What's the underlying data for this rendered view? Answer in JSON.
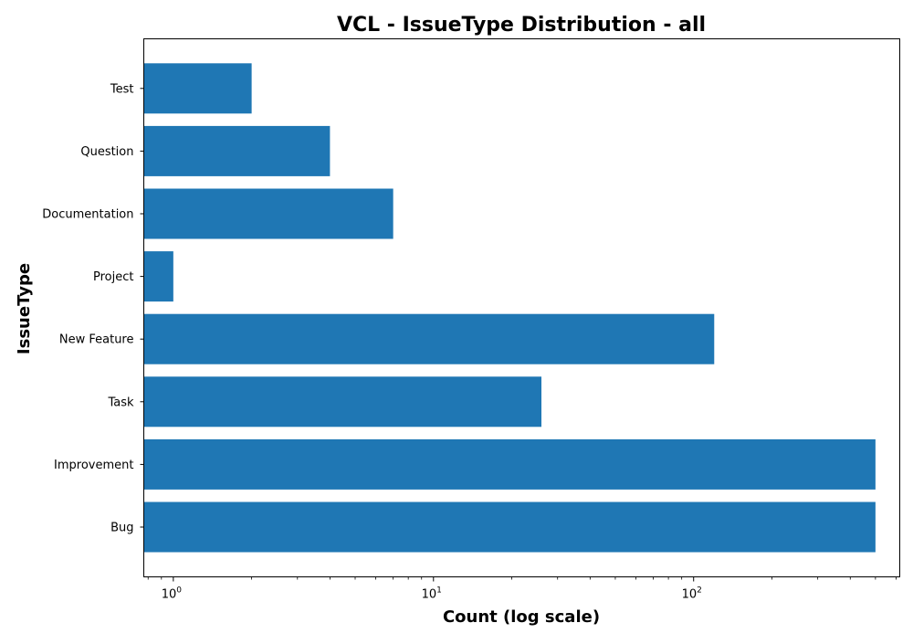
{
  "chart_data": {
    "type": "bar",
    "orientation": "horizontal",
    "title": "VCL - IssueType Distribution - all",
    "xlabel": "Count (log scale)",
    "ylabel": "IssueType",
    "x_scale": "log",
    "xlim": [
      0.77,
      620
    ],
    "x_ticks": [
      {
        "base": "10",
        "exponent": "0"
      },
      {
        "base": "10",
        "exponent": "1"
      },
      {
        "base": "10",
        "exponent": "2"
      }
    ],
    "categories": [
      "Bug",
      "Improvement",
      "Task",
      "New Feature",
      "Project",
      "Documentation",
      "Question",
      "Test"
    ],
    "values": [
      500,
      500,
      26,
      120,
      1,
      7,
      4,
      2
    ],
    "bar_color": "#1f77b4",
    "grid": false,
    "legend": "none"
  }
}
